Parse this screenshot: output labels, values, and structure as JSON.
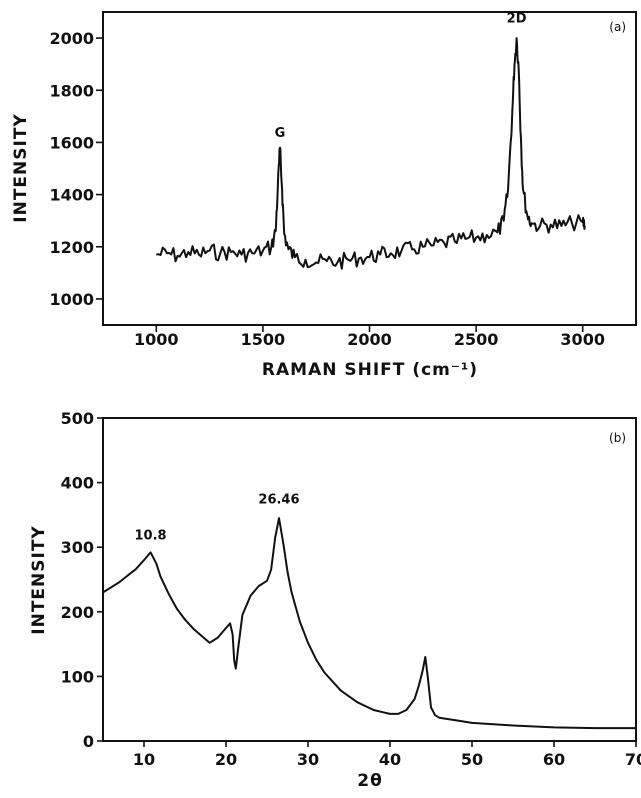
{
  "chart_data": [
    {
      "panel": "(a)",
      "type": "line",
      "title": "",
      "xlabel": "RAMAN SHIFT (cm⁻¹)",
      "ylabel": "INTENSITY",
      "xlim": [
        750,
        3250
      ],
      "ylim": [
        900,
        2100
      ],
      "xticks": [
        1000,
        1500,
        2000,
        2500,
        3000
      ],
      "yticks": [
        1000,
        1200,
        1400,
        1600,
        1800,
        2000
      ],
      "grid": false,
      "annotations": [
        {
          "text": "G",
          "x": 1580,
          "y": 1620
        },
        {
          "text": "2D",
          "x": 2690,
          "y": 2060
        }
      ],
      "series": [
        {
          "x": [
            1000,
            1050,
            1100,
            1150,
            1200,
            1250,
            1300,
            1350,
            1400,
            1450,
            1500,
            1540,
            1560,
            1570,
            1580,
            1590,
            1600,
            1620,
            1650,
            1700,
            1750,
            1800,
            1850,
            1900,
            1950,
            2000,
            2050,
            2100,
            2150,
            2200,
            2250,
            2300,
            2350,
            2400,
            2450,
            2500,
            2550,
            2600,
            2630,
            2650,
            2670,
            2680,
            2690,
            2700,
            2710,
            2720,
            2740,
            2760,
            2800,
            2850,
            2900,
            2950,
            3000,
            3010
          ],
          "y": [
            1170,
            1175,
            1165,
            1180,
            1170,
            1185,
            1175,
            1180,
            1170,
            1175,
            1185,
            1200,
            1260,
            1430,
            1580,
            1420,
            1250,
            1190,
            1160,
            1150,
            1140,
            1145,
            1140,
            1150,
            1155,
            1160,
            1170,
            1175,
            1185,
            1190,
            1200,
            1205,
            1215,
            1220,
            1230,
            1235,
            1245,
            1255,
            1300,
            1420,
            1720,
            1900,
            2000,
            1880,
            1620,
            1420,
            1320,
            1290,
            1280,
            1285,
            1280,
            1290,
            1295,
            1280
          ]
        }
      ]
    },
    {
      "panel": "(b)",
      "type": "line",
      "title": "",
      "xlabel": "2θ",
      "ylabel": "INTENSITY",
      "xlim": [
        5,
        70
      ],
      "ylim": [
        0,
        500
      ],
      "xticks": [
        10,
        20,
        30,
        40,
        50,
        60,
        70
      ],
      "yticks": [
        0,
        100,
        200,
        300,
        400,
        500
      ],
      "grid": false,
      "annotations": [
        {
          "text": "10.8",
          "x": 10.8,
          "y": 312
        },
        {
          "text": "26.46",
          "x": 26.46,
          "y": 368
        }
      ],
      "series": [
        {
          "x": [
            5,
            6,
            7,
            8,
            9,
            10,
            10.8,
            11.5,
            12,
            13,
            14,
            15,
            16,
            17,
            18,
            19,
            20,
            20.5,
            20.8,
            21,
            21.2,
            21.5,
            22,
            23,
            24,
            25,
            25.5,
            26,
            26.46,
            27,
            27.5,
            28,
            29,
            30,
            31,
            32,
            34,
            36,
            38,
            40,
            41,
            42,
            43,
            43.5,
            44,
            44.3,
            44.6,
            45,
            45.5,
            46,
            48,
            50,
            55,
            60,
            65,
            70
          ],
          "y": [
            230,
            238,
            246,
            256,
            266,
            280,
            292,
            275,
            255,
            228,
            205,
            188,
            174,
            163,
            152,
            160,
            175,
            182,
            165,
            125,
            112,
            145,
            195,
            225,
            240,
            248,
            265,
            315,
            345,
            305,
            262,
            230,
            185,
            152,
            126,
            106,
            78,
            60,
            48,
            42,
            42,
            48,
            65,
            85,
            110,
            130,
            100,
            52,
            40,
            36,
            32,
            28,
            24,
            21,
            20,
            20
          ]
        }
      ]
    }
  ]
}
